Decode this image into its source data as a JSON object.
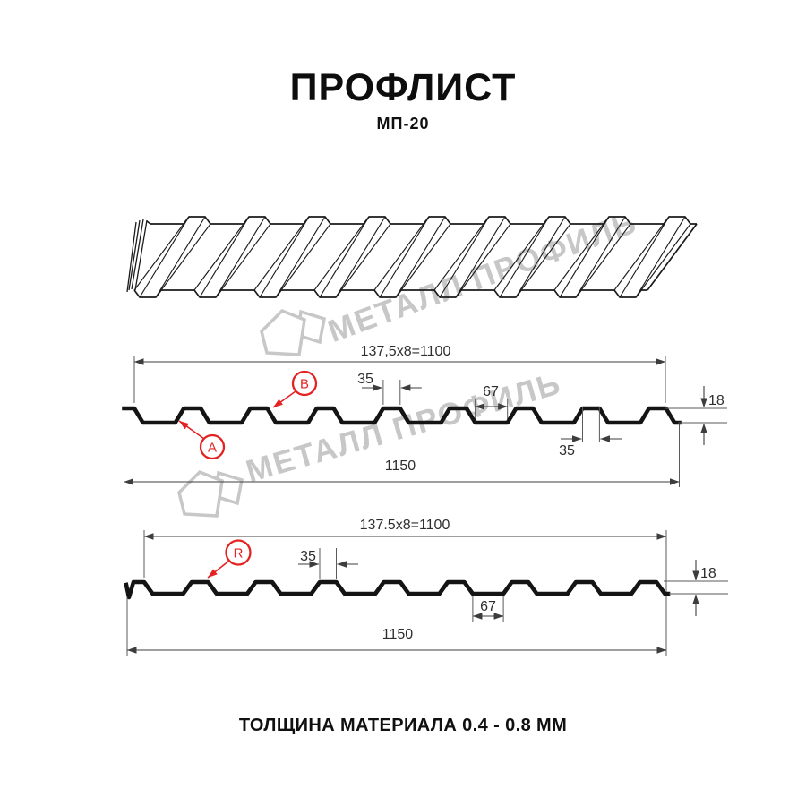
{
  "header": {
    "title": "ПРОФЛИСТ",
    "subtitle": "МП-20"
  },
  "footer": {
    "text": "ТОЛЩИНА МАТЕРИАЛА 0.4 - 0.8 ММ"
  },
  "watermark": {
    "brand": "МЕТАЛЛ ПРОФИЛЬ"
  },
  "colors": {
    "annotation_red": "#e42221",
    "line": "#3d3d3d",
    "profile": "#141414",
    "watermark_gray": "#c7c7c7"
  },
  "diagram_top": {
    "module_width": "137,5x8=1100",
    "overall_width": "1150",
    "rib_width_top": "35",
    "rib_width_bottom": "35",
    "groove_width": "67",
    "profile_height": "18",
    "marker_a": "A",
    "marker_b": "B"
  },
  "diagram_bottom": {
    "module_width": "137.5x8=1100",
    "overall_width": "1150",
    "rib_width_top": "35",
    "groove_width": "67",
    "profile_height": "18",
    "marker_r": "R"
  }
}
